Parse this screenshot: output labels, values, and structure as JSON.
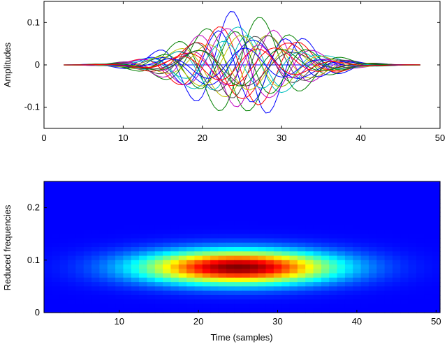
{
  "chart_data": [
    {
      "type": "line",
      "title": "",
      "xlabel": "",
      "ylabel": "Amplitudes",
      "xlim": [
        0,
        50
      ],
      "ylim": [
        -0.15,
        0.15
      ],
      "xticks": [
        0,
        10,
        20,
        30,
        40,
        50
      ],
      "xtick_labels": [
        "0",
        "10",
        "20",
        "30",
        "40",
        "50"
      ],
      "yticks": [
        -0.1,
        0,
        0.1
      ],
      "ytick_labels": [
        "-0.1",
        "0",
        "0.1"
      ],
      "grid": false,
      "legend": "none",
      "x_range": [
        2.5,
        47.5
      ],
      "series_count": 24,
      "series": [
        {
          "color": "#0000ff",
          "center": 25,
          "sigma": 6.5,
          "amp": 0.13,
          "period": 9.4,
          "phase": 0.9
        },
        {
          "color": "#008000",
          "center": 25,
          "sigma": 6.5,
          "amp": 0.11,
          "period": 11.0,
          "phase": 2.7
        },
        {
          "color": "#ff0000",
          "center": 25,
          "sigma": 6.5,
          "amp": 0.1,
          "period": 10.4,
          "phase": 1.8
        },
        {
          "color": "#00bfbf",
          "center": 25,
          "sigma": 6.5,
          "amp": 0.09,
          "period": 12.0,
          "phase": 0.3
        },
        {
          "color": "#bf00bf",
          "center": 25,
          "sigma": 6.5,
          "amp": 0.1,
          "period": 9.8,
          "phase": 3.6
        },
        {
          "color": "#bfbf00",
          "center": 25,
          "sigma": 6.5,
          "amp": 0.08,
          "period": 11.6,
          "phase": 4.4
        },
        {
          "color": "#404040",
          "center": 25,
          "sigma": 6.5,
          "amp": 0.07,
          "period": 10.1,
          "phase": 5.2
        },
        {
          "color": "#0000ff",
          "center": 25,
          "sigma": 6.5,
          "amp": 0.09,
          "period": 8.8,
          "phase": 2.2
        },
        {
          "color": "#008000",
          "center": 25,
          "sigma": 6.5,
          "amp": 0.12,
          "period": 10.7,
          "phase": 4.9
        },
        {
          "color": "#ff0000",
          "center": 25,
          "sigma": 6.5,
          "amp": 0.08,
          "period": 12.5,
          "phase": 3.1
        },
        {
          "color": "#00bfbf",
          "center": 25,
          "sigma": 6.5,
          "amp": 0.07,
          "period": 9.1,
          "phase": 5.8
        },
        {
          "color": "#bf00bf",
          "center": 25,
          "sigma": 6.5,
          "amp": 0.09,
          "period": 11.3,
          "phase": 1.1
        },
        {
          "color": "#bfbf00",
          "center": 25,
          "sigma": 6.5,
          "amp": 0.06,
          "period": 10.9,
          "phase": 2.6
        },
        {
          "color": "#404040",
          "center": 25,
          "sigma": 6.5,
          "amp": 0.08,
          "period": 9.6,
          "phase": 4.0
        },
        {
          "color": "#0000ff",
          "center": 25,
          "sigma": 6.5,
          "amp": 0.06,
          "period": 12.2,
          "phase": 5.5
        },
        {
          "color": "#008000",
          "center": 25,
          "sigma": 6.5,
          "amp": 0.08,
          "period": 9.3,
          "phase": 0.6
        },
        {
          "color": "#ff0000",
          "center": 25,
          "sigma": 6.5,
          "amp": 0.05,
          "period": 11.8,
          "phase": 3.9
        },
        {
          "color": "#00bfbf",
          "center": 25,
          "sigma": 6.5,
          "amp": 0.06,
          "period": 10.2,
          "phase": 1.5
        },
        {
          "color": "#bf00bf",
          "center": 25,
          "sigma": 6.5,
          "amp": 0.05,
          "period": 8.6,
          "phase": 4.7
        },
        {
          "color": "#bfbf00",
          "center": 25,
          "sigma": 6.5,
          "amp": 0.07,
          "period": 10.6,
          "phase": 0.1
        },
        {
          "color": "#404040",
          "center": 25,
          "sigma": 6.5,
          "amp": 0.05,
          "period": 12.8,
          "phase": 2.9
        },
        {
          "color": "#0000ff",
          "center": 25,
          "sigma": 6.5,
          "amp": 0.04,
          "period": 9.9,
          "phase": 6.0
        },
        {
          "color": "#008000",
          "center": 25,
          "sigma": 6.5,
          "amp": 0.05,
          "period": 11.1,
          "phase": 3.3
        },
        {
          "color": "#ff0000",
          "center": 25,
          "sigma": 6.5,
          "amp": 0.04,
          "period": 10.0,
          "phase": 5.0
        }
      ]
    },
    {
      "type": "heatmap",
      "title": "",
      "xlabel": "Time (samples)",
      "ylabel": "Reduced frequencies",
      "xlim": [
        0.5,
        50.5
      ],
      "ylim": [
        0,
        0.25
      ],
      "xticks": [
        10,
        20,
        30,
        40,
        50
      ],
      "xtick_labels": [
        "10",
        "20",
        "30",
        "40",
        "50"
      ],
      "yticks": [
        0,
        0.1,
        0.2
      ],
      "ytick_labels": [
        "0",
        "0.1",
        "0.2"
      ],
      "colormap": "jet",
      "grid_cols": 50,
      "grid_rows": 30,
      "blob_center": {
        "time": 25,
        "frequency": 0.086
      },
      "blob_sigma": {
        "time": 8.5,
        "frequency": 0.022
      },
      "peak_value": 1.0
    }
  ]
}
